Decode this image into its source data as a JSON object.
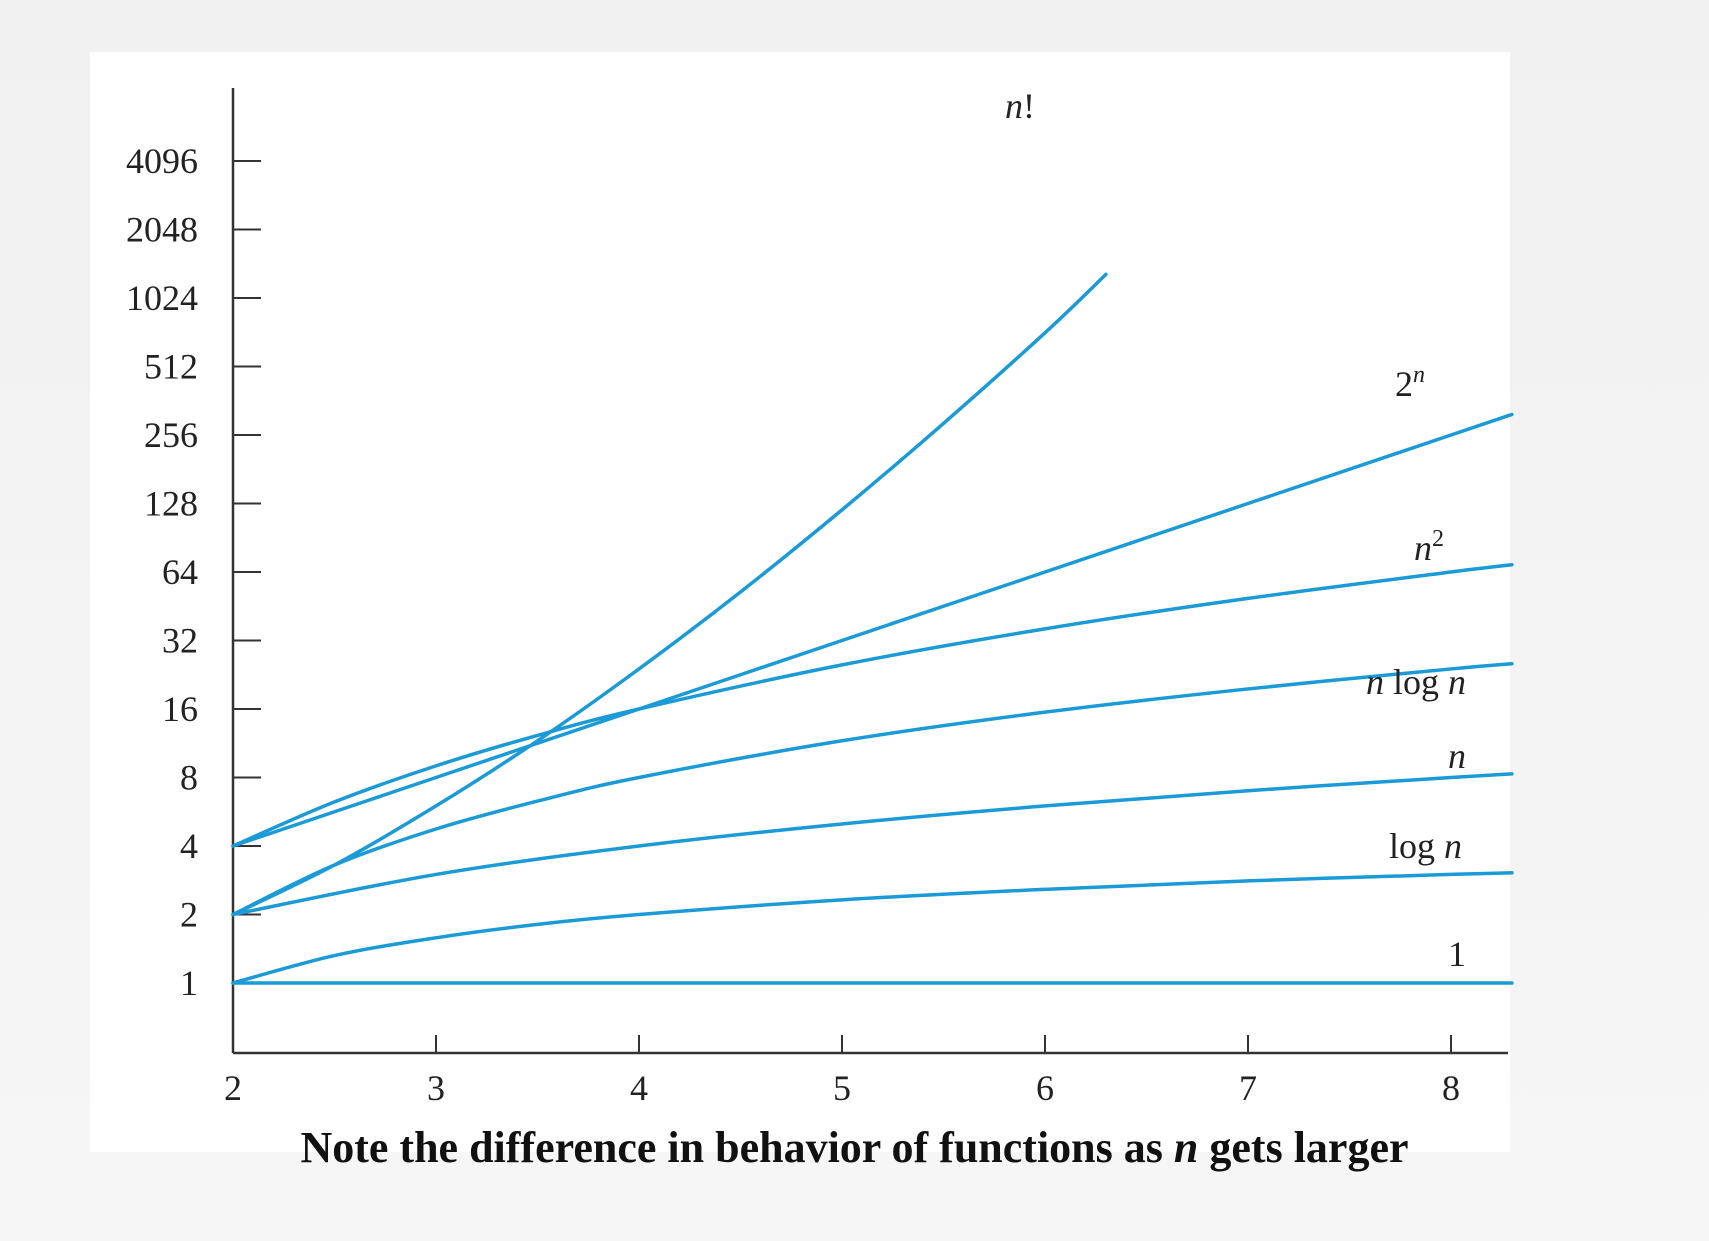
{
  "caption": {
    "before": "Note the difference in behavior of functions as ",
    "var": "n",
    "after": " gets larger"
  },
  "chart_data": {
    "type": "line",
    "title": "",
    "xlabel": "",
    "ylabel": "",
    "x_scale": "linear",
    "y_scale": "log2",
    "xlim": [
      2,
      8.3
    ],
    "ylim": [
      1,
      8192
    ],
    "x_ticks": [
      "2",
      "3",
      "4",
      "5",
      "6",
      "7",
      "8"
    ],
    "y_ticks": [
      "1",
      "2",
      "4",
      "8",
      "16",
      "32",
      "64",
      "128",
      "256",
      "512",
      "1024",
      "2048",
      "4096"
    ],
    "y_tick_values": [
      1,
      2,
      4,
      8,
      16,
      32,
      64,
      128,
      256,
      512,
      1024,
      2048,
      4096
    ],
    "grid": false,
    "line_color": "#1a9ad6",
    "series": [
      {
        "id": "nfact",
        "label_parts": [
          [
            "n",
            "ital"
          ],
          [
            "!",
            ""
          ]
        ],
        "x": [
          2,
          2.5,
          3,
          3.5,
          4,
          4.5,
          5,
          5.5,
          6,
          6.3
        ],
        "y": [
          2,
          3.3,
          6,
          11.6,
          24,
          52.3,
          120,
          287.9,
          720,
          1300
        ]
      },
      {
        "id": "2n",
        "label_parts": [
          [
            "2",
            ""
          ],
          [
            "n",
            "sup"
          ]
        ],
        "x": [
          2,
          3,
          4,
          5,
          6,
          7,
          8,
          8.3
        ],
        "y": [
          4,
          8,
          16,
          32,
          64,
          128,
          256,
          315
        ]
      },
      {
        "id": "n2",
        "label_parts": [
          [
            "n",
            "ital"
          ],
          [
            "2",
            "supn"
          ]
        ],
        "x": [
          2,
          2.5,
          3,
          3.5,
          4,
          5,
          6,
          7,
          8,
          8.3
        ],
        "y": [
          4,
          6.25,
          9,
          12.25,
          16,
          25,
          36,
          49,
          64,
          68.9
        ]
      },
      {
        "id": "nlogn",
        "label_parts": [
          [
            "n",
            "ital"
          ],
          [
            " log ",
            ""
          ],
          [
            "n",
            "ital"
          ]
        ],
        "x": [
          2,
          2.5,
          3,
          3.5,
          4,
          5,
          6,
          7,
          8,
          8.3
        ],
        "y": [
          2,
          3.3,
          4.75,
          6.3,
          8,
          11.6,
          15.5,
          19.6,
          24,
          25.3
        ]
      },
      {
        "id": "n",
        "label_parts": [
          [
            "n",
            "ital"
          ]
        ],
        "x": [
          2,
          3,
          4,
          5,
          6,
          7,
          8,
          8.3
        ],
        "y": [
          2,
          3,
          4,
          5,
          6,
          7,
          8,
          8.3
        ]
      },
      {
        "id": "logn",
        "label_parts": [
          [
            "log ",
            ""
          ],
          [
            "n",
            "ital"
          ]
        ],
        "x": [
          2,
          2.5,
          3,
          3.5,
          4,
          5,
          6,
          7,
          8,
          8.3
        ],
        "y": [
          1,
          1.32,
          1.58,
          1.81,
          2,
          2.32,
          2.58,
          2.81,
          3,
          3.05
        ]
      },
      {
        "id": "one",
        "label_parts": [
          [
            "1",
            ""
          ]
        ],
        "x": [
          2,
          8.3
        ],
        "y": [
          1,
          1
        ]
      }
    ]
  }
}
